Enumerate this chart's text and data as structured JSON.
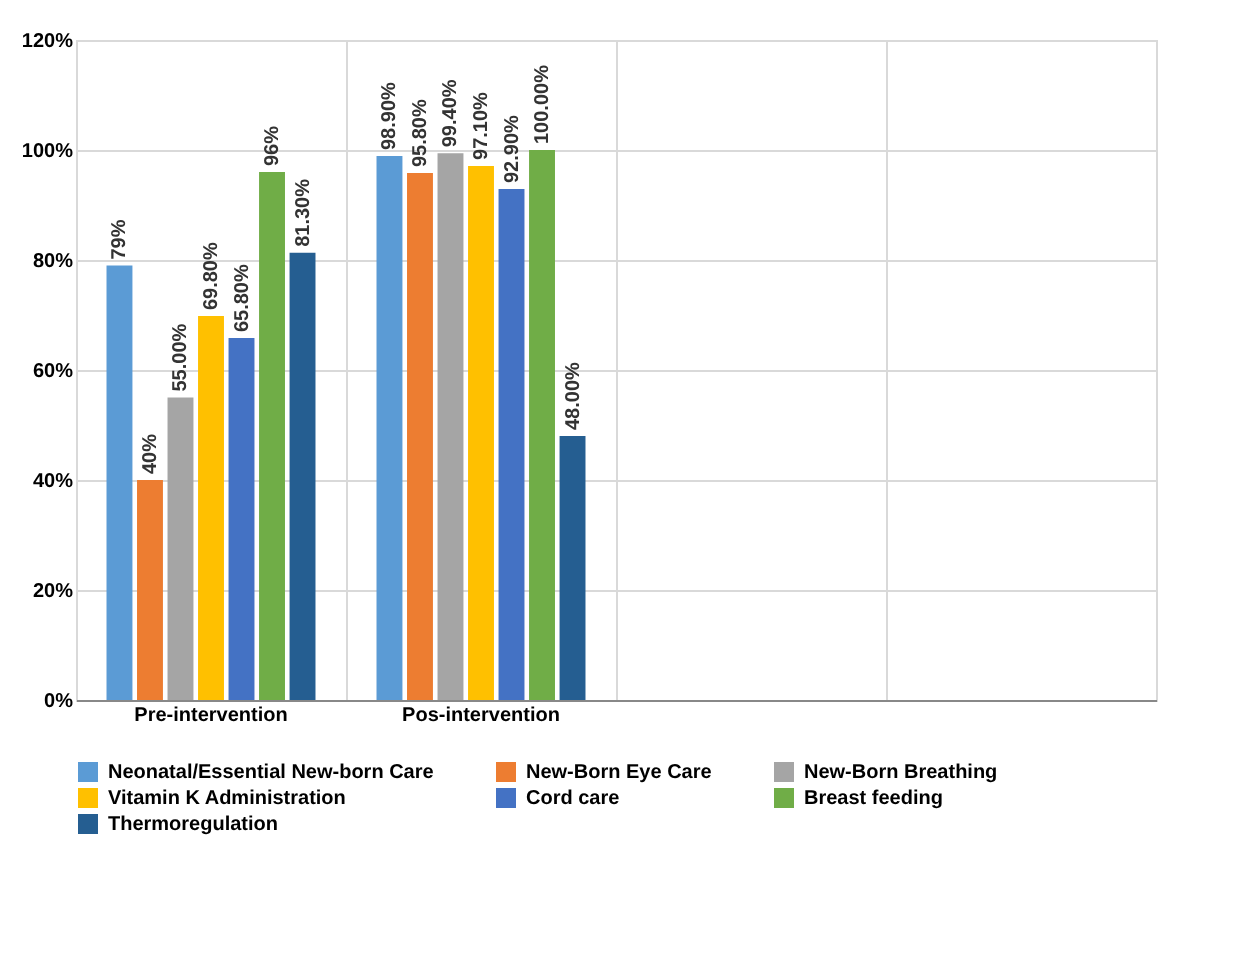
{
  "chart_data": {
    "type": "bar",
    "categories": [
      "Pre-intervention",
      "Pos-intervention",
      null,
      null
    ],
    "ylim": [
      0,
      120
    ],
    "yticks": [
      {
        "value": 0,
        "label": "0%"
      },
      {
        "value": 20,
        "label": "20%"
      },
      {
        "value": 40,
        "label": "40%"
      },
      {
        "value": 60,
        "label": "60%"
      },
      {
        "value": 80,
        "label": "80%"
      },
      {
        "value": 100,
        "label": "100%"
      },
      {
        "value": 120,
        "label": "120%"
      }
    ],
    "grid": true,
    "legend": "bottom",
    "series": [
      {
        "name": "Neonatal/Essential New-born Care",
        "color": "#5b9bd5",
        "values": [
          79,
          98.9,
          null,
          null
        ],
        "value_labels": [
          "79%",
          "98.90%",
          null,
          null
        ]
      },
      {
        "name": "New-Born Eye Care",
        "color": "#ed7d31",
        "values": [
          40,
          95.8,
          null,
          null
        ],
        "value_labels": [
          "40%",
          "95.80%",
          null,
          null
        ]
      },
      {
        "name": "New-Born Breathing",
        "color": "#a5a5a5",
        "values": [
          55,
          99.4,
          null,
          null
        ],
        "value_labels": [
          "55.00%",
          "99.40%",
          null,
          null
        ]
      },
      {
        "name": "Vitamin K  Administration",
        "color": "#ffc000",
        "values": [
          69.8,
          97.1,
          null,
          null
        ],
        "value_labels": [
          "69.80%",
          "97.10%",
          null,
          null
        ]
      },
      {
        "name": "Cord care",
        "color": "#4472c4",
        "values": [
          65.8,
          92.9,
          null,
          null
        ],
        "value_labels": [
          "65.80%",
          "92.90%",
          null,
          null
        ]
      },
      {
        "name": "Breast feeding",
        "color": "#70ad47",
        "values": [
          96,
          100,
          null,
          null
        ],
        "value_labels": [
          "96%",
          "100.00%",
          null,
          null
        ]
      },
      {
        "name": "Thermoregulation",
        "color": "#255e91",
        "values": [
          81.3,
          48,
          null,
          null
        ],
        "value_labels": [
          "81.30%",
          "48.00%",
          null,
          null
        ]
      }
    ]
  }
}
